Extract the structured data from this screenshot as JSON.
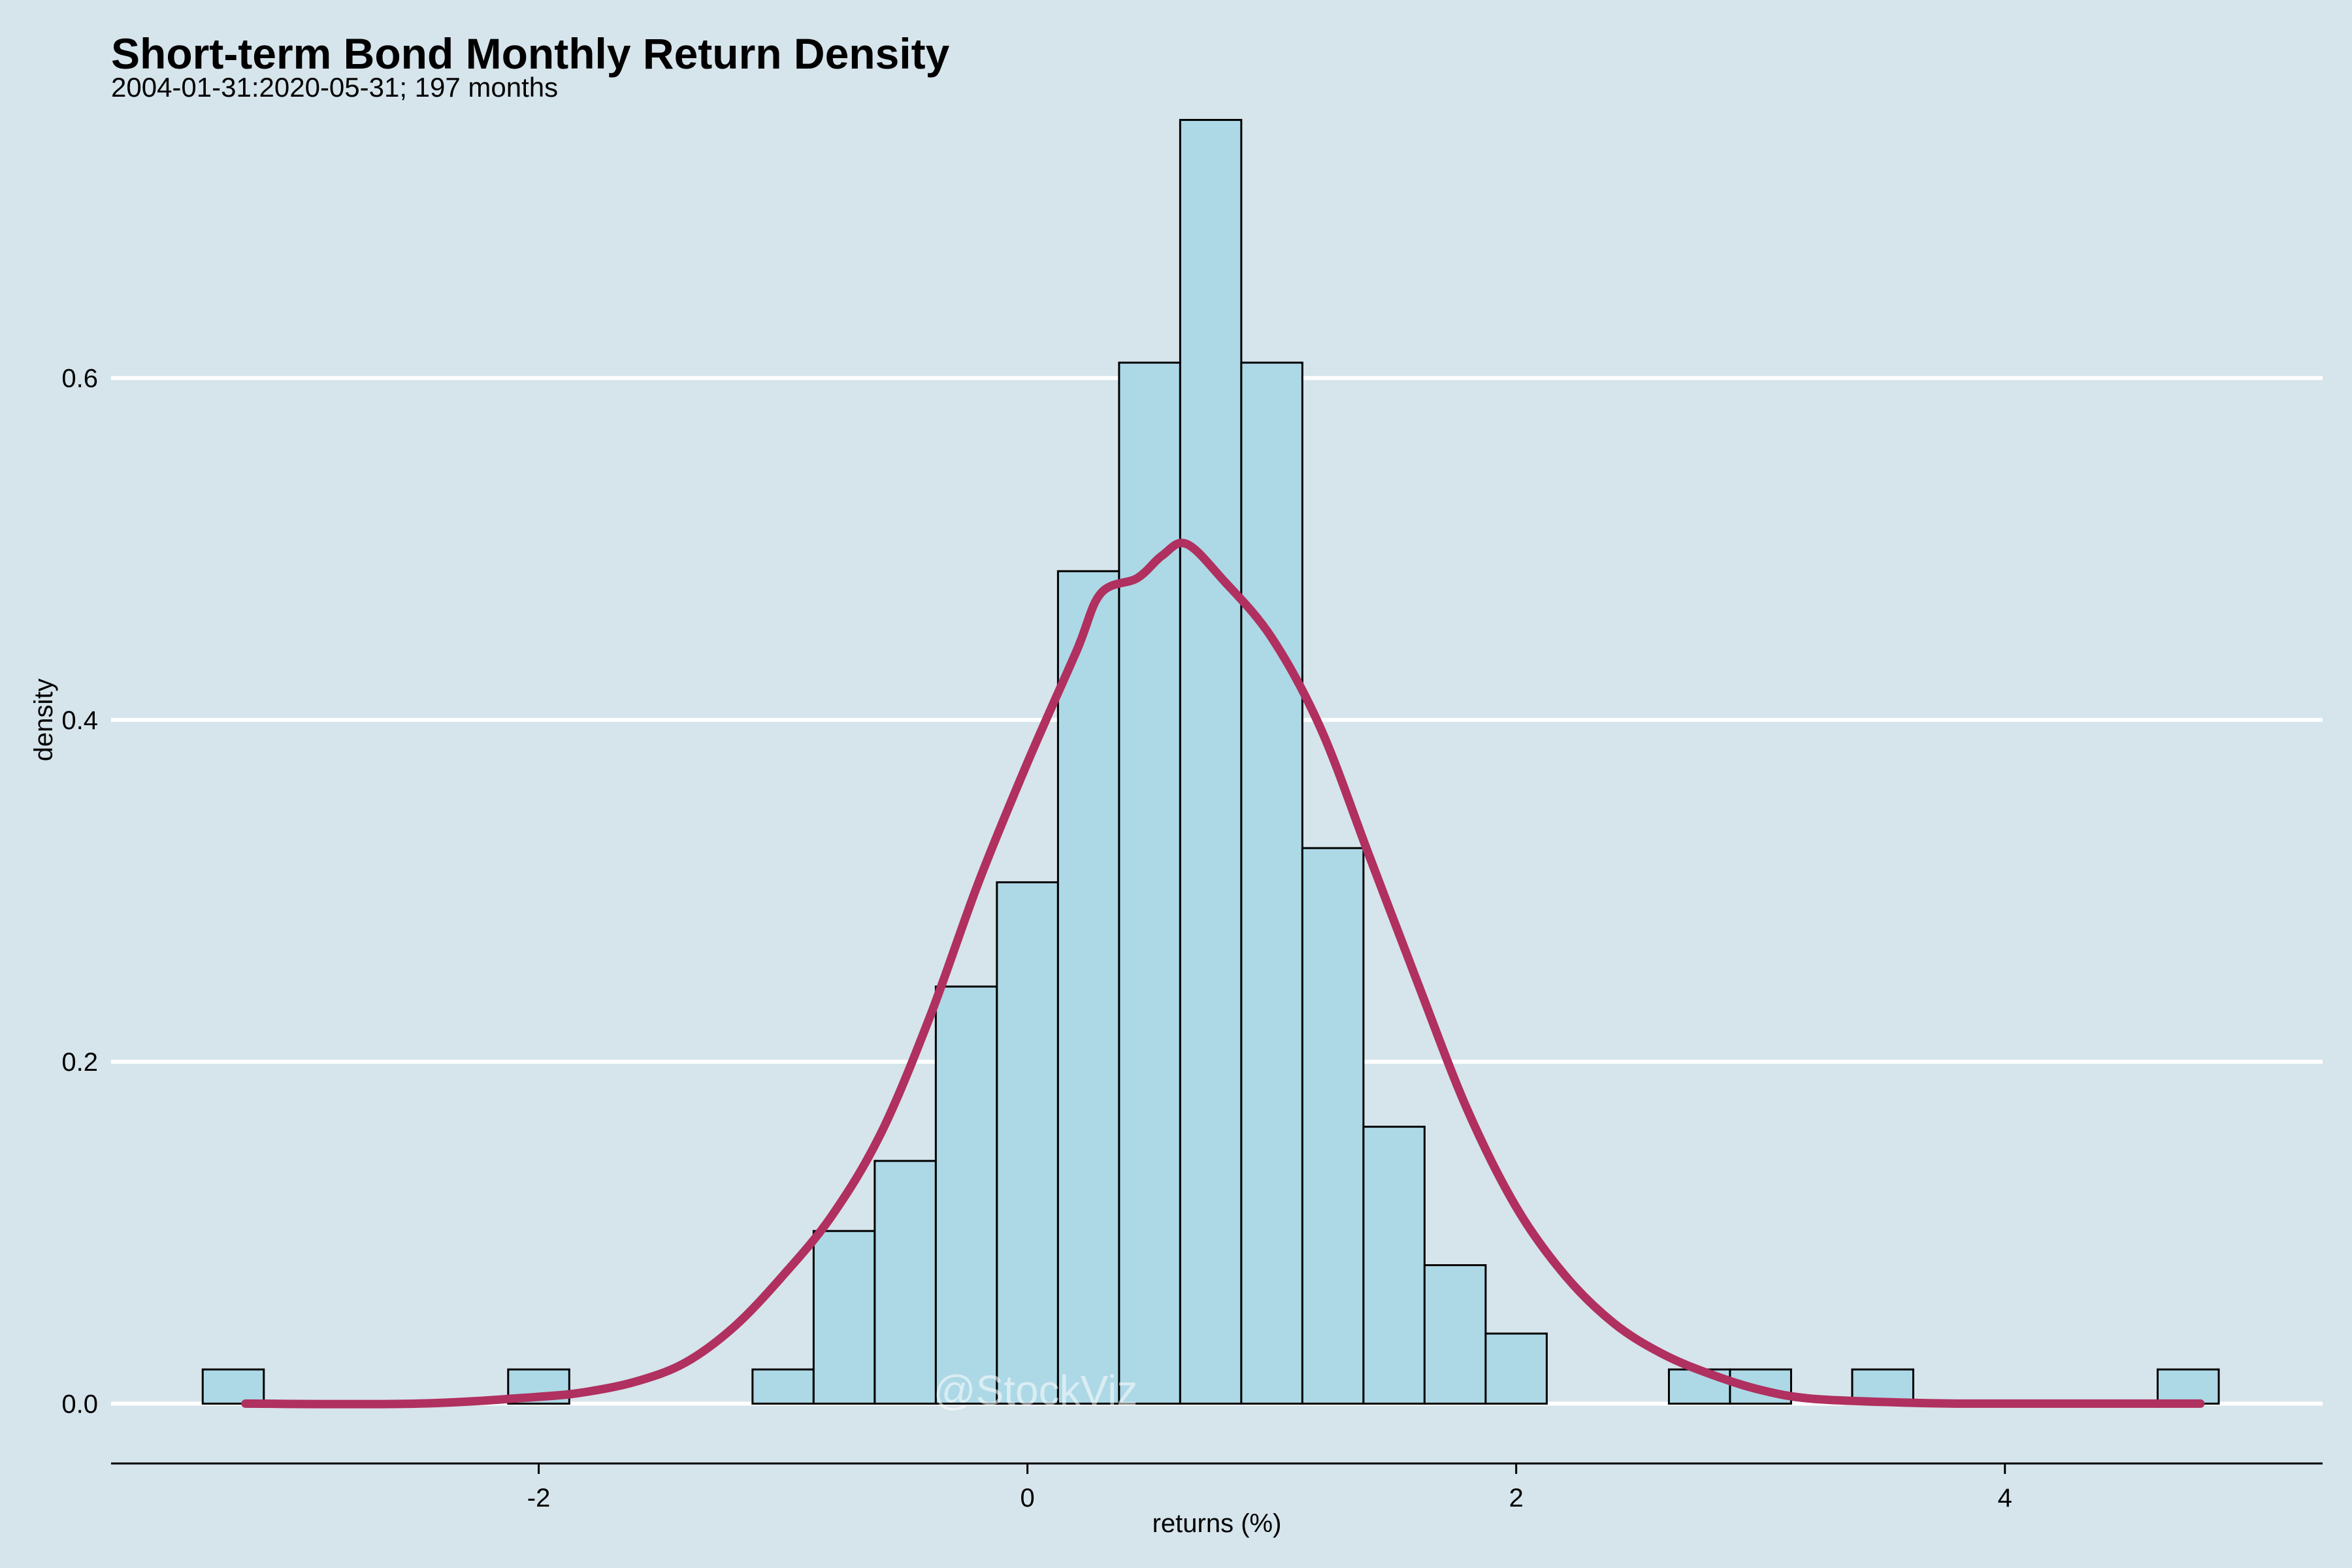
{
  "chart_data": {
    "type": "histogram",
    "title": "Short-term Bond Monthly Return Density",
    "subtitle": "2004-01-31:2020-05-31; 197 months",
    "xlabel": "returns (%)",
    "ylabel": "density",
    "xlim": [
      -3.75,
      5.3
    ],
    "ylim": [
      -0.035,
      0.76
    ],
    "x_ticks": [
      -2,
      0,
      2,
      4
    ],
    "x_tick_labels": [
      "-2",
      "0",
      "2",
      "4"
    ],
    "y_ticks": [
      0.0,
      0.2,
      0.4,
      0.6
    ],
    "y_tick_labels": [
      "0.0",
      "0.2",
      "0.4",
      "0.6"
    ],
    "grid": "horizontal",
    "bin_width": 0.25,
    "bins": [
      {
        "x0": -3.375,
        "x1": -3.125,
        "density": 0.02
      },
      {
        "x0": -2.125,
        "x1": -1.875,
        "density": 0.02
      },
      {
        "x0": -1.125,
        "x1": -0.875,
        "density": 0.02
      },
      {
        "x0": -0.875,
        "x1": -0.625,
        "density": 0.101
      },
      {
        "x0": -0.625,
        "x1": -0.375,
        "density": 0.142
      },
      {
        "x0": -0.375,
        "x1": -0.125,
        "density": 0.244
      },
      {
        "x0": -0.125,
        "x1": 0.125,
        "density": 0.305
      },
      {
        "x0": 0.125,
        "x1": 0.375,
        "density": 0.487
      },
      {
        "x0": 0.375,
        "x1": 0.625,
        "density": 0.609
      },
      {
        "x0": 0.625,
        "x1": 0.875,
        "density": 0.751
      },
      {
        "x0": 0.875,
        "x1": 1.125,
        "density": 0.609
      },
      {
        "x0": 1.125,
        "x1": 1.375,
        "density": 0.325
      },
      {
        "x0": 1.375,
        "x1": 1.625,
        "density": 0.162
      },
      {
        "x0": 1.625,
        "x1": 1.875,
        "density": 0.081
      },
      {
        "x0": 1.875,
        "x1": 2.125,
        "density": 0.041
      },
      {
        "x0": 2.625,
        "x1": 2.875,
        "density": 0.02
      },
      {
        "x0": 2.875,
        "x1": 3.125,
        "density": 0.02
      },
      {
        "x0": 3.375,
        "x1": 3.625,
        "density": 0.02
      },
      {
        "x0": 4.625,
        "x1": 4.875,
        "density": 0.02
      }
    ],
    "density_curve": {
      "x": [
        -3.2,
        -2.5,
        -2.0,
        -1.8,
        -1.6,
        -1.4,
        -1.2,
        -1.0,
        -0.8,
        -0.6,
        -0.4,
        -0.2,
        0.0,
        0.2,
        0.3,
        0.45,
        0.55,
        0.65,
        0.8,
        1.0,
        1.2,
        1.4,
        1.6,
        1.8,
        2.0,
        2.2,
        2.4,
        2.6,
        2.8,
        3.0,
        3.2,
        3.5,
        3.8,
        4.2,
        4.8
      ],
      "y": [
        0.0,
        0.0,
        0.004,
        0.007,
        0.013,
        0.024,
        0.045,
        0.075,
        0.11,
        0.158,
        0.226,
        0.305,
        0.375,
        0.44,
        0.474,
        0.483,
        0.496,
        0.503,
        0.482,
        0.448,
        0.395,
        0.32,
        0.245,
        0.172,
        0.115,
        0.075,
        0.047,
        0.029,
        0.017,
        0.008,
        0.003,
        0.001,
        0.0,
        0.0,
        0.0
      ]
    },
    "colors": {
      "background": "#d6e4eb",
      "bar_fill": "#add8e6",
      "bar_stroke": "#000000",
      "curve": "#b03060",
      "grid": "#ffffff"
    },
    "watermark": "@StockViz"
  }
}
